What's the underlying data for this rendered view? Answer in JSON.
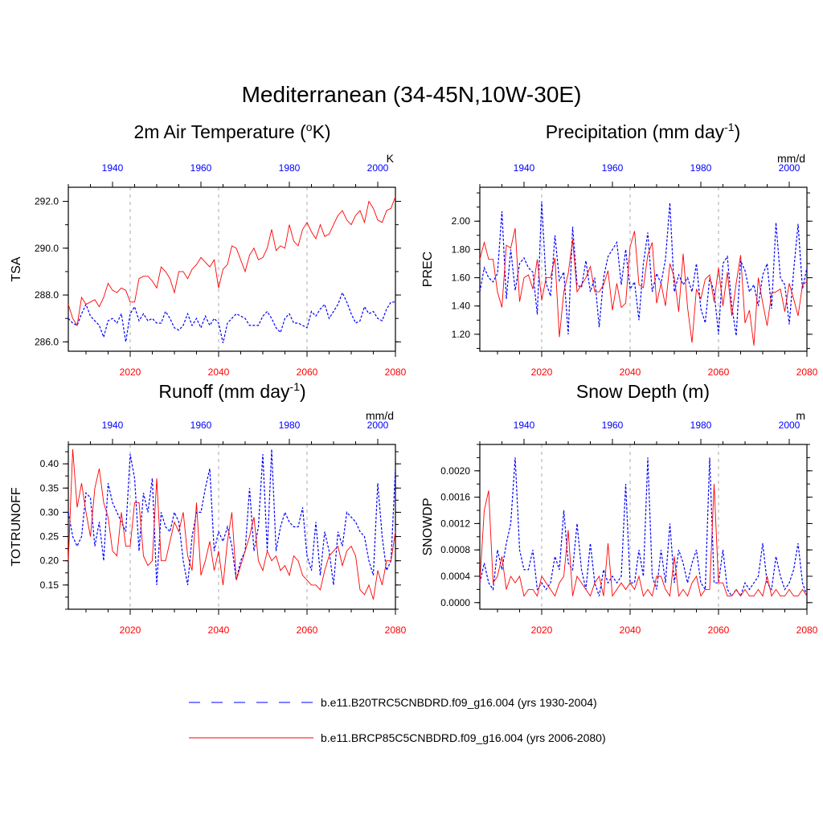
{
  "title": "Mediterranean (34-45N,10W-30E)",
  "colors": {
    "historical": "#0000ff",
    "future": "#ff0000",
    "grid": "#aaaaaa"
  },
  "legend": [
    {
      "label": "b.e11.B20TRC5CNBDRD.f09_g16.004 (yrs 1930-2004)",
      "style": "dashed-blue"
    },
    {
      "label": "b.e11.BRCP85C5CNBDRD.f09_g16.004 (yrs 2006-2080)",
      "style": "solid-red"
    }
  ],
  "chart_data": [
    {
      "type": "line",
      "title_main": "2m Air Temperature (",
      "title_sup": "o",
      "title_end": "K)",
      "ylabel": "TSA",
      "units": "K",
      "ylim": [
        285.6,
        292.6
      ],
      "yticks": [
        286.0,
        288.0,
        290.0,
        292.0
      ],
      "ytick_labels": [
        "286.0",
        "288.0",
        "290.0",
        "292.0"
      ],
      "x_bottom": {
        "range": [
          2006,
          2080
        ],
        "ticks": [
          2020,
          2040,
          2060,
          2080
        ]
      },
      "x_top": {
        "range": [
          1930,
          2004
        ],
        "ticks": [
          1940,
          1960,
          1980,
          2000
        ]
      },
      "series": [
        {
          "name": "historical",
          "start_year": 1930,
          "values": [
            287.0,
            286.8,
            286.7,
            287.2,
            287.6,
            287.1,
            286.9,
            286.7,
            286.2,
            286.9,
            287.0,
            286.8,
            287.2,
            286.0,
            287.2,
            287.5,
            286.9,
            287.2,
            286.9,
            287.0,
            286.8,
            286.8,
            287.3,
            287.0,
            286.6,
            286.5,
            286.7,
            287.2,
            286.7,
            287.0,
            286.6,
            287.1,
            286.7,
            287.0,
            286.8,
            285.95,
            286.8,
            287.0,
            287.2,
            287.1,
            287.0,
            286.7,
            286.7,
            286.7,
            287.1,
            287.3,
            287.0,
            286.6,
            286.4,
            287.0,
            287.2,
            286.8,
            286.8,
            286.7,
            286.6,
            287.3,
            287.1,
            287.4,
            287.6,
            287.0,
            287.3,
            287.6,
            288.1,
            287.7,
            287.2,
            286.8,
            286.9,
            287.5,
            287.2,
            287.3,
            287.0,
            286.9,
            287.4,
            287.7,
            287.7
          ]
        },
        {
          "name": "future",
          "start_year": 2006,
          "values": [
            287.6,
            287.0,
            286.7,
            287.9,
            287.6,
            287.7,
            287.8,
            287.5,
            287.9,
            288.5,
            288.2,
            288.1,
            288.3,
            288.2,
            287.7,
            287.7,
            288.7,
            288.8,
            288.8,
            288.6,
            288.3,
            289.2,
            289.0,
            288.7,
            288.1,
            289.0,
            289.0,
            288.7,
            289.1,
            289.3,
            289.6,
            289.4,
            289.2,
            289.5,
            288.3,
            289.1,
            289.3,
            290.1,
            290.0,
            289.5,
            289.0,
            289.7,
            290.0,
            289.5,
            289.6,
            290.0,
            290.8,
            289.9,
            290.1,
            290.0,
            291.0,
            290.3,
            290.1,
            290.8,
            291.1,
            290.7,
            290.4,
            291.0,
            290.5,
            290.6,
            291.0,
            291.4,
            291.6,
            291.2,
            291.0,
            291.4,
            291.6,
            291.1,
            292.0,
            291.7,
            291.2,
            291.1,
            291.6,
            291.7,
            292.2
          ]
        }
      ]
    },
    {
      "type": "line",
      "title_main": "Precipitation (mm day",
      "title_sup": "-1",
      "title_end": ")",
      "ylabel": "PREC",
      "units": "mm/d",
      "ylim": [
        1.08,
        2.24
      ],
      "yticks": [
        1.2,
        1.4,
        1.6,
        1.8,
        2.0
      ],
      "ytick_labels": [
        "1.20",
        "1.40",
        "1.60",
        "1.80",
        "2.00"
      ],
      "x_bottom": {
        "range": [
          2006,
          2080
        ],
        "ticks": [
          2020,
          2040,
          2060,
          2080
        ]
      },
      "x_top": {
        "range": [
          1930,
          2004
        ],
        "ticks": [
          1940,
          1960,
          1980,
          2000
        ]
      },
      "series": [
        {
          "name": "historical",
          "start_year": 1930,
          "values": [
            1.5,
            1.67,
            1.6,
            1.57,
            1.63,
            2.07,
            1.45,
            1.8,
            1.51,
            1.7,
            1.74,
            1.67,
            1.64,
            1.34,
            2.14,
            1.56,
            1.47,
            1.9,
            1.58,
            1.64,
            1.2,
            1.96,
            1.55,
            1.53,
            1.72,
            1.5,
            1.6,
            1.25,
            1.6,
            1.75,
            1.8,
            1.85,
            1.55,
            1.8,
            1.52,
            1.57,
            1.3,
            1.7,
            1.92,
            1.5,
            1.63,
            1.56,
            1.73,
            2.13,
            1.5,
            1.62,
            1.55,
            1.6,
            1.5,
            1.7,
            1.38,
            1.28,
            1.6,
            1.5,
            1.2,
            1.7,
            1.75,
            1.4,
            1.19,
            1.72,
            1.65,
            1.5,
            1.55,
            1.4,
            1.62,
            1.7,
            1.38,
            1.99,
            1.6,
            1.55,
            1.27,
            1.65,
            1.98,
            1.52,
            1.67
          ]
        },
        {
          "name": "future",
          "start_year": 2006,
          "values": [
            1.73,
            1.85,
            1.73,
            1.73,
            1.5,
            1.39,
            1.83,
            1.81,
            1.95,
            1.43,
            1.6,
            1.62,
            1.52,
            1.73,
            1.44,
            1.6,
            1.6,
            1.74,
            1.18,
            1.5,
            1.63,
            1.87,
            1.5,
            1.55,
            1.6,
            1.68,
            1.5,
            1.5,
            1.55,
            1.65,
            1.37,
            1.56,
            1.39,
            1.42,
            1.82,
            1.93,
            1.55,
            1.53,
            1.76,
            1.85,
            1.42,
            1.56,
            1.4,
            1.7,
            1.6,
            1.36,
            1.77,
            1.39,
            1.14,
            1.52,
            1.45,
            1.59,
            1.62,
            1.43,
            1.67,
            1.4,
            1.64,
            1.33,
            1.56,
            1.76,
            1.28,
            1.37,
            1.12,
            1.6,
            1.42,
            1.26,
            1.49,
            1.5,
            1.52,
            1.36,
            1.56,
            1.45,
            1.33,
            1.55,
            1.57
          ]
        }
      ]
    },
    {
      "type": "line",
      "title_main": "Runoff (mm day",
      "title_sup": "-1",
      "title_end": ")",
      "ylabel": "TOTRUNOFF",
      "units": "mm/d",
      "ylim": [
        0.1,
        0.44
      ],
      "yticks": [
        0.15,
        0.2,
        0.25,
        0.3,
        0.35,
        0.4
      ],
      "ytick_labels": [
        "0.15",
        "0.20",
        "0.25",
        "0.30",
        "0.35",
        "0.40"
      ],
      "x_bottom": {
        "range": [
          2006,
          2080
        ],
        "ticks": [
          2020,
          2040,
          2060,
          2080
        ]
      },
      "x_top": {
        "range": [
          1930,
          2004
        ],
        "ticks": [
          1940,
          1960,
          1980,
          2000
        ]
      },
      "series": [
        {
          "name": "historical",
          "start_year": 1930,
          "values": [
            0.3,
            0.25,
            0.23,
            0.25,
            0.34,
            0.33,
            0.23,
            0.28,
            0.2,
            0.36,
            0.32,
            0.3,
            0.28,
            0.26,
            0.42,
            0.37,
            0.22,
            0.34,
            0.3,
            0.37,
            0.15,
            0.3,
            0.27,
            0.26,
            0.3,
            0.28,
            0.2,
            0.15,
            0.25,
            0.3,
            0.3,
            0.35,
            0.39,
            0.22,
            0.26,
            0.24,
            0.27,
            0.23,
            0.16,
            0.2,
            0.22,
            0.35,
            0.22,
            0.27,
            0.42,
            0.22,
            0.43,
            0.22,
            0.27,
            0.3,
            0.28,
            0.27,
            0.27,
            0.31,
            0.21,
            0.18,
            0.28,
            0.17,
            0.26,
            0.22,
            0.15,
            0.26,
            0.23,
            0.3,
            0.29,
            0.28,
            0.26,
            0.25,
            0.2,
            0.17,
            0.36,
            0.25,
            0.18,
            0.2,
            0.39
          ]
        },
        {
          "name": "future",
          "start_year": 2006,
          "values": [
            0.2,
            0.43,
            0.31,
            0.36,
            0.3,
            0.25,
            0.35,
            0.39,
            0.32,
            0.29,
            0.22,
            0.21,
            0.3,
            0.23,
            0.23,
            0.32,
            0.32,
            0.21,
            0.19,
            0.2,
            0.37,
            0.2,
            0.2,
            0.24,
            0.28,
            0.26,
            0.3,
            0.21,
            0.18,
            0.32,
            0.17,
            0.2,
            0.24,
            0.18,
            0.22,
            0.15,
            0.24,
            0.3,
            0.16,
            0.19,
            0.22,
            0.25,
            0.29,
            0.2,
            0.18,
            0.22,
            0.2,
            0.21,
            0.18,
            0.19,
            0.17,
            0.21,
            0.2,
            0.17,
            0.16,
            0.15,
            0.15,
            0.14,
            0.18,
            0.21,
            0.22,
            0.23,
            0.19,
            0.22,
            0.23,
            0.21,
            0.14,
            0.13,
            0.15,
            0.12,
            0.18,
            0.15,
            0.2,
            0.2,
            0.26
          ]
        }
      ]
    },
    {
      "type": "line",
      "title_main": "Snow Depth (m)",
      "title_sup": "",
      "title_end": "",
      "ylabel": "SNOWDP",
      "units": "m",
      "ylim": [
        -0.0001,
        0.0024
      ],
      "yticks": [
        0.0,
        0.0004,
        0.0008,
        0.0012,
        0.0016,
        0.002
      ],
      "ytick_labels": [
        "0.0000",
        "0.0004",
        "0.0008",
        "0.0012",
        "0.0016",
        "0.0020"
      ],
      "x_bottom": {
        "range": [
          2006,
          2080
        ],
        "ticks": [
          2020,
          2040,
          2060,
          2080
        ]
      },
      "x_top": {
        "range": [
          1930,
          2004
        ],
        "ticks": [
          1940,
          1960,
          1980,
          2000
        ]
      },
      "series": [
        {
          "name": "historical",
          "start_year": 1930,
          "values": [
            0.0003,
            0.0006,
            0.0003,
            0.0002,
            0.0008,
            0.0005,
            0.0009,
            0.0012,
            0.0022,
            0.0008,
            0.0005,
            0.0005,
            0.0008,
            0.0002,
            0.0003,
            0.0002,
            0.0003,
            0.0007,
            0.0005,
            0.0014,
            0.0006,
            0.0005,
            0.0012,
            0.0005,
            0.0002,
            0.0009,
            0.0003,
            0.0001,
            0.0005,
            0.0003,
            0.0004,
            0.0003,
            0.0004,
            0.0018,
            0.0003,
            0.0003,
            0.0008,
            0.0004,
            0.0022,
            0.0004,
            0.0002,
            0.0008,
            0.0003,
            0.0012,
            0.0003,
            0.0008,
            0.0006,
            0.0003,
            0.0006,
            0.0008,
            0.0003,
            0.0002,
            0.0022,
            0.0003,
            0.0003,
            0.0008,
            0.0002,
            0.0001,
            0.0002,
            0.0001,
            0.0003,
            0.0002,
            0.0003,
            0.0004,
            0.0009,
            0.0003,
            0.0002,
            0.0007,
            0.0004,
            0.0002,
            0.0003,
            0.0005,
            0.0009,
            0.0003,
            0.0001
          ]
        },
        {
          "name": "future",
          "start_year": 2006,
          "values": [
            0.0003,
            0.0014,
            0.0017,
            0.0003,
            0.0004,
            0.0007,
            0.0002,
            0.0004,
            0.0003,
            0.0004,
            0.0001,
            0.0002,
            0.0002,
            0.0001,
            0.0004,
            0.0003,
            0.0002,
            0.0001,
            0.0003,
            0.0004,
            0.0011,
            0.0001,
            0.0004,
            0.0003,
            0.0002,
            0.0001,
            0.0003,
            0.0004,
            0.0001,
            0.0009,
            0.0001,
            0.0002,
            0.0003,
            0.0002,
            0.0003,
            0.0002,
            0.0004,
            0.0001,
            0.0002,
            0.0001,
            0.0004,
            0.0004,
            0.0002,
            0.0001,
            0.0007,
            0.0001,
            0.0002,
            0.0001,
            0.0003,
            0.0004,
            0.0001,
            0.0002,
            0.0002,
            0.0018,
            0.0003,
            0.0003,
            0.0001,
            0.0001,
            0.0002,
            0.0001,
            0.0002,
            0.0001,
            0.0001,
            0.0002,
            0.0001,
            0.0004,
            0.0001,
            0.0002,
            0.0001,
            0.0001,
            0.0002,
            0.0001,
            0.0001,
            0.0002,
            0.0001
          ]
        }
      ]
    }
  ]
}
